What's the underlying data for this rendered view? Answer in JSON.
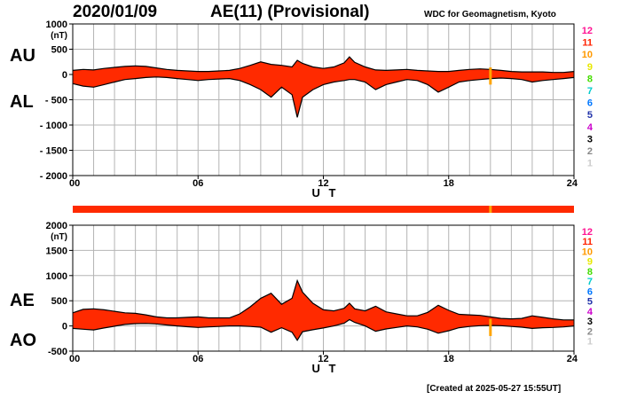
{
  "header": {
    "date": "2020/01/09",
    "title": "AE(11) (Provisional)",
    "source": "WDC for Geomagnetism, Kyoto"
  },
  "footer": {
    "created": "[Created at 2025-05-27 15:55UT]"
  },
  "colors": {
    "fill": "#ff2a00",
    "grid": "#b4b4b4",
    "station_bar": "#ff2a00",
    "gap_marker": "#ffa500"
  },
  "station_legend": [
    {
      "label": "12",
      "color": "#ff1493"
    },
    {
      "label": "11",
      "color": "#ff2200"
    },
    {
      "label": "10",
      "color": "#ff9900"
    },
    {
      "label": "9",
      "color": "#e8e800"
    },
    {
      "label": "8",
      "color": "#44dd00"
    },
    {
      "label": "7",
      "color": "#00cccc"
    },
    {
      "label": "6",
      "color": "#0077ff"
    },
    {
      "label": "5",
      "color": "#2233aa"
    },
    {
      "label": "4",
      "color": "#cc00cc"
    },
    {
      "label": "3",
      "color": "#000000"
    },
    {
      "label": "2",
      "color": "#888888"
    },
    {
      "label": "1",
      "color": "#cccccc"
    }
  ],
  "chart_data": [
    {
      "type": "area",
      "panel": "AU/AL",
      "upper_label": "AU",
      "lower_label": "AL",
      "unit": "(nT)",
      "xlabel": "U T",
      "xlim": [
        0,
        24
      ],
      "ylim": [
        -2000,
        1000
      ],
      "x_ticks": [
        0,
        6,
        12,
        18,
        24
      ],
      "x_tick_labels": [
        "00",
        "06",
        "12",
        "18",
        "24"
      ],
      "y_ticks": [
        1000,
        500,
        0,
        -500,
        -1000,
        -1500,
        -2000
      ],
      "y_tick_labels": [
        "1000",
        "500",
        "0",
        "- 500",
        "- 1000",
        "- 1500",
        "- 2000"
      ],
      "grid": true,
      "x": [
        0,
        0.5,
        1,
        1.5,
        2,
        2.5,
        3,
        3.5,
        4,
        4.5,
        5,
        5.5,
        6,
        6.5,
        7,
        7.5,
        8,
        8.5,
        9,
        9.5,
        10,
        10.5,
        10.75,
        11,
        11.5,
        12,
        12.5,
        13,
        13.25,
        13.5,
        14,
        14.5,
        15,
        15.5,
        16,
        16.5,
        17,
        17.5,
        18,
        18.5,
        19,
        19.5,
        20,
        20.5,
        21,
        21.5,
        22,
        22.5,
        23,
        23.5,
        24
      ],
      "series": [
        {
          "name": "AU",
          "values": [
            80,
            100,
            90,
            120,
            140,
            160,
            170,
            160,
            130,
            100,
            80,
            70,
            60,
            60,
            70,
            80,
            120,
            180,
            250,
            200,
            180,
            150,
            280,
            220,
            150,
            120,
            150,
            230,
            350,
            240,
            150,
            90,
            80,
            90,
            100,
            80,
            70,
            60,
            60,
            80,
            100,
            110,
            100,
            80,
            60,
            50,
            50,
            50,
            40,
            40,
            60
          ]
        },
        {
          "name": "AL",
          "values": [
            -180,
            -230,
            -250,
            -200,
            -150,
            -100,
            -80,
            -60,
            -50,
            -60,
            -80,
            -100,
            -120,
            -100,
            -90,
            -80,
            -120,
            -200,
            -300,
            -450,
            -250,
            -400,
            -850,
            -450,
            -300,
            -200,
            -150,
            -120,
            -100,
            -100,
            -150,
            -300,
            -200,
            -150,
            -100,
            -120,
            -200,
            -350,
            -250,
            -150,
            -120,
            -100,
            -80,
            -70,
            -80,
            -100,
            -150,
            -120,
            -100,
            -80,
            -60
          ]
        }
      ],
      "gap_x": 20
    },
    {
      "type": "area",
      "panel": "AE/AO",
      "upper_label": "AE",
      "lower_label": "AO",
      "unit": "(nT)",
      "xlabel": "U T",
      "xlim": [
        0,
        24
      ],
      "ylim": [
        -500,
        2000
      ],
      "x_ticks": [
        0,
        6,
        12,
        18,
        24
      ],
      "x_tick_labels": [
        "00",
        "06",
        "12",
        "18",
        "24"
      ],
      "y_ticks": [
        2000,
        1500,
        1000,
        500,
        0,
        -500
      ],
      "y_tick_labels": [
        "2000",
        "1500",
        "1000",
        "500",
        "0",
        "-500"
      ],
      "grid": true,
      "x": [
        0,
        0.5,
        1,
        1.5,
        2,
        2.5,
        3,
        3.5,
        4,
        4.5,
        5,
        5.5,
        6,
        6.5,
        7,
        7.5,
        8,
        8.5,
        9,
        9.5,
        10,
        10.5,
        10.75,
        11,
        11.5,
        12,
        12.5,
        13,
        13.25,
        13.5,
        14,
        14.5,
        15,
        15.5,
        16,
        16.5,
        17,
        17.5,
        18,
        18.5,
        19,
        19.5,
        20,
        20.5,
        21,
        21.5,
        22,
        22.5,
        23,
        23.5,
        24
      ],
      "series": [
        {
          "name": "AE",
          "values": [
            260,
            330,
            340,
            320,
            290,
            260,
            250,
            220,
            180,
            160,
            160,
            170,
            180,
            160,
            160,
            160,
            240,
            380,
            550,
            650,
            430,
            550,
            900,
            670,
            450,
            320,
            300,
            350,
            450,
            340,
            300,
            390,
            280,
            240,
            200,
            200,
            270,
            410,
            310,
            230,
            220,
            210,
            180,
            150,
            140,
            150,
            200,
            170,
            140,
            120,
            120
          ]
        },
        {
          "name": "AO",
          "values": [
            -50,
            -65,
            -80,
            -40,
            -5,
            30,
            45,
            50,
            40,
            20,
            0,
            -15,
            -30,
            -20,
            -10,
            0,
            0,
            -10,
            -25,
            -125,
            -35,
            -125,
            -285,
            -115,
            -75,
            -40,
            0,
            55,
            125,
            70,
            0,
            -105,
            -60,
            -30,
            0,
            -20,
            -65,
            -145,
            -95,
            -35,
            -10,
            5,
            10,
            5,
            -10,
            -25,
            -50,
            -35,
            -30,
            -20,
            0
          ]
        }
      ],
      "gap_x": 20
    }
  ]
}
